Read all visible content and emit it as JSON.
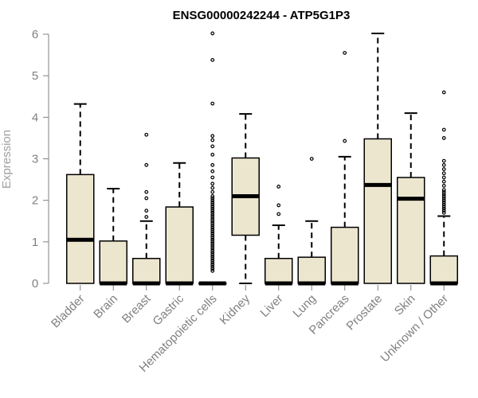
{
  "chart_data": {
    "type": "boxplot",
    "title": "ENSG00000242244 - ATP5G1P3",
    "xlabel": "",
    "ylabel": "Expression",
    "ylim": [
      0,
      6.1
    ],
    "yticks": [
      0,
      1,
      2,
      3,
      4,
      5,
      6
    ],
    "grid": false,
    "categories": [
      "Bladder",
      "Brain",
      "Breast",
      "Gastric",
      "Hematopoietic cells",
      "Kidney",
      "Liver",
      "Lung",
      "Pancreas",
      "Prostate",
      "Skin",
      "Unknown / Other"
    ],
    "boxes": [
      {
        "q1": 0,
        "median": 1.05,
        "q3": 2.62,
        "whisker_low": 0,
        "whisker_high": 4.32,
        "outliers": []
      },
      {
        "q1": 0,
        "median": 0,
        "q3": 1.02,
        "whisker_low": 0,
        "whisker_high": 2.28,
        "outliers": []
      },
      {
        "q1": 0,
        "median": 0,
        "q3": 0.6,
        "whisker_low": 0,
        "whisker_high": 1.5,
        "outliers": [
          1.6,
          1.75,
          2.05,
          2.2,
          2.85,
          3.58
        ]
      },
      {
        "q1": 0,
        "median": 0,
        "q3": 1.84,
        "whisker_low": 0,
        "whisker_high": 2.9,
        "outliers": []
      },
      {
        "q1": 0,
        "median": 0,
        "q3": 0,
        "whisker_low": 0,
        "whisker_high": 0,
        "outliers": [
          0.3,
          0.35,
          0.4,
          0.45,
          0.5,
          0.55,
          0.6,
          0.65,
          0.7,
          0.75,
          0.8,
          0.85,
          0.9,
          0.95,
          1.0,
          1.05,
          1.1,
          1.15,
          1.2,
          1.25,
          1.3,
          1.35,
          1.4,
          1.45,
          1.5,
          1.55,
          1.6,
          1.65,
          1.7,
          1.75,
          1.8,
          1.85,
          1.9,
          1.95,
          2.0,
          2.05,
          2.1,
          2.2,
          2.3,
          2.4,
          2.55,
          2.7,
          2.85,
          3.1,
          3.3,
          3.45,
          3.55,
          4.33,
          5.38,
          6.02
        ]
      },
      {
        "q1": 1.16,
        "median": 2.1,
        "q3": 3.02,
        "whisker_low": 0,
        "whisker_high": 4.08,
        "outliers": []
      },
      {
        "q1": 0,
        "median": 0,
        "q3": 0.6,
        "whisker_low": 0,
        "whisker_high": 1.4,
        "outliers": [
          1.67,
          1.88,
          2.33
        ]
      },
      {
        "q1": 0,
        "median": 0,
        "q3": 0.63,
        "whisker_low": 0,
        "whisker_high": 1.5,
        "outliers": [
          3.0
        ]
      },
      {
        "q1": 0,
        "median": 0,
        "q3": 1.35,
        "whisker_low": 0,
        "whisker_high": 3.05,
        "outliers": [
          3.43,
          5.55
        ]
      },
      {
        "q1": 0,
        "median": 2.37,
        "q3": 3.48,
        "whisker_low": 0,
        "whisker_high": 6.02,
        "outliers": []
      },
      {
        "q1": 0,
        "median": 2.04,
        "q3": 2.55,
        "whisker_low": 0,
        "whisker_high": 4.1,
        "outliers": []
      },
      {
        "q1": 0,
        "median": 0,
        "q3": 0.66,
        "whisker_low": 0,
        "whisker_high": 1.62,
        "outliers": [
          1.7,
          1.75,
          1.8,
          1.85,
          1.9,
          1.95,
          2.0,
          2.05,
          2.1,
          2.15,
          2.2,
          2.25,
          2.35,
          2.45,
          2.55,
          2.65,
          2.75,
          2.85,
          2.95,
          3.5,
          3.7,
          4.6
        ]
      }
    ],
    "colors": {
      "box_fill": "#ede6cf",
      "box_stroke": "#000000",
      "axis": "#808080",
      "outlier": "#000000"
    }
  }
}
